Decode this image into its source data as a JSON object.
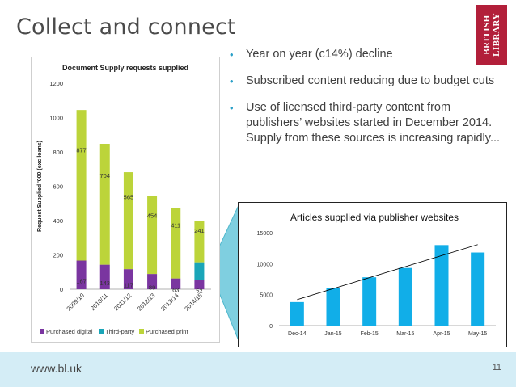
{
  "slide": {
    "title": "Collect and connect",
    "logo_line1": "BRITISH",
    "logo_line2": "LIBRARY",
    "bullets": [
      "Year on year (c14%) decline",
      "Subscribed content reducing due to budget cuts",
      "Use of licensed third-party content from publishers’ websites started in December 2014. Supply from these sources is increasing rapidly..."
    ],
    "footer_url": "www.bl.uk",
    "page_number": "11"
  },
  "colors": {
    "purchased_digital": "#7a35a0",
    "third_party": "#1aa5b8",
    "purchased_print": "#bcd43a",
    "articles_bars": "#11aee8",
    "callout_fill": "#7fcfe0",
    "footer_bg": "#d4edf6"
  },
  "chart_data": [
    {
      "type": "bar",
      "stacked": true,
      "title": "Document Supply requests supplied",
      "ylabel": "Request Supplied '000 (exc loans)",
      "xlabel": "",
      "categories": [
        "2009/10",
        "2010/11",
        "2011/12",
        "2012/13",
        "2013/14",
        "2014/15"
      ],
      "ylim": [
        0,
        1200
      ],
      "yticks": [
        0,
        200,
        400,
        600,
        800,
        1000,
        1200
      ],
      "series": [
        {
          "name": "Purchased digital",
          "values": [
            167,
            143,
            117,
            89,
            63,
            52
          ],
          "labels": [
            "167",
            "143",
            "117",
            "89",
            "63",
            "52"
          ]
        },
        {
          "name": "Third-party",
          "values": [
            0,
            0,
            0,
            0,
            0,
            105
          ],
          "labels": [
            "",
            "",
            "",
            "",
            "",
            ""
          ]
        },
        {
          "name": "Purchased print",
          "values": [
            877,
            704,
            565,
            454,
            411,
            241
          ],
          "labels": [
            "877",
            "704",
            "565",
            "454",
            "411",
            "241"
          ]
        }
      ],
      "legend": "bottom",
      "grid": false
    },
    {
      "type": "bar",
      "title": "Articles supplied via  publisher websites",
      "categories": [
        "Dec-14",
        "Jan-15",
        "Feb-15",
        "Mar-15",
        "Apr-15",
        "May-15"
      ],
      "values": [
        3800,
        6100,
        7800,
        9300,
        13000,
        11800
      ],
      "ylim": [
        0,
        15000
      ],
      "yticks": [
        0,
        5000,
        10000,
        15000
      ],
      "trendline": true,
      "grid": false
    }
  ]
}
